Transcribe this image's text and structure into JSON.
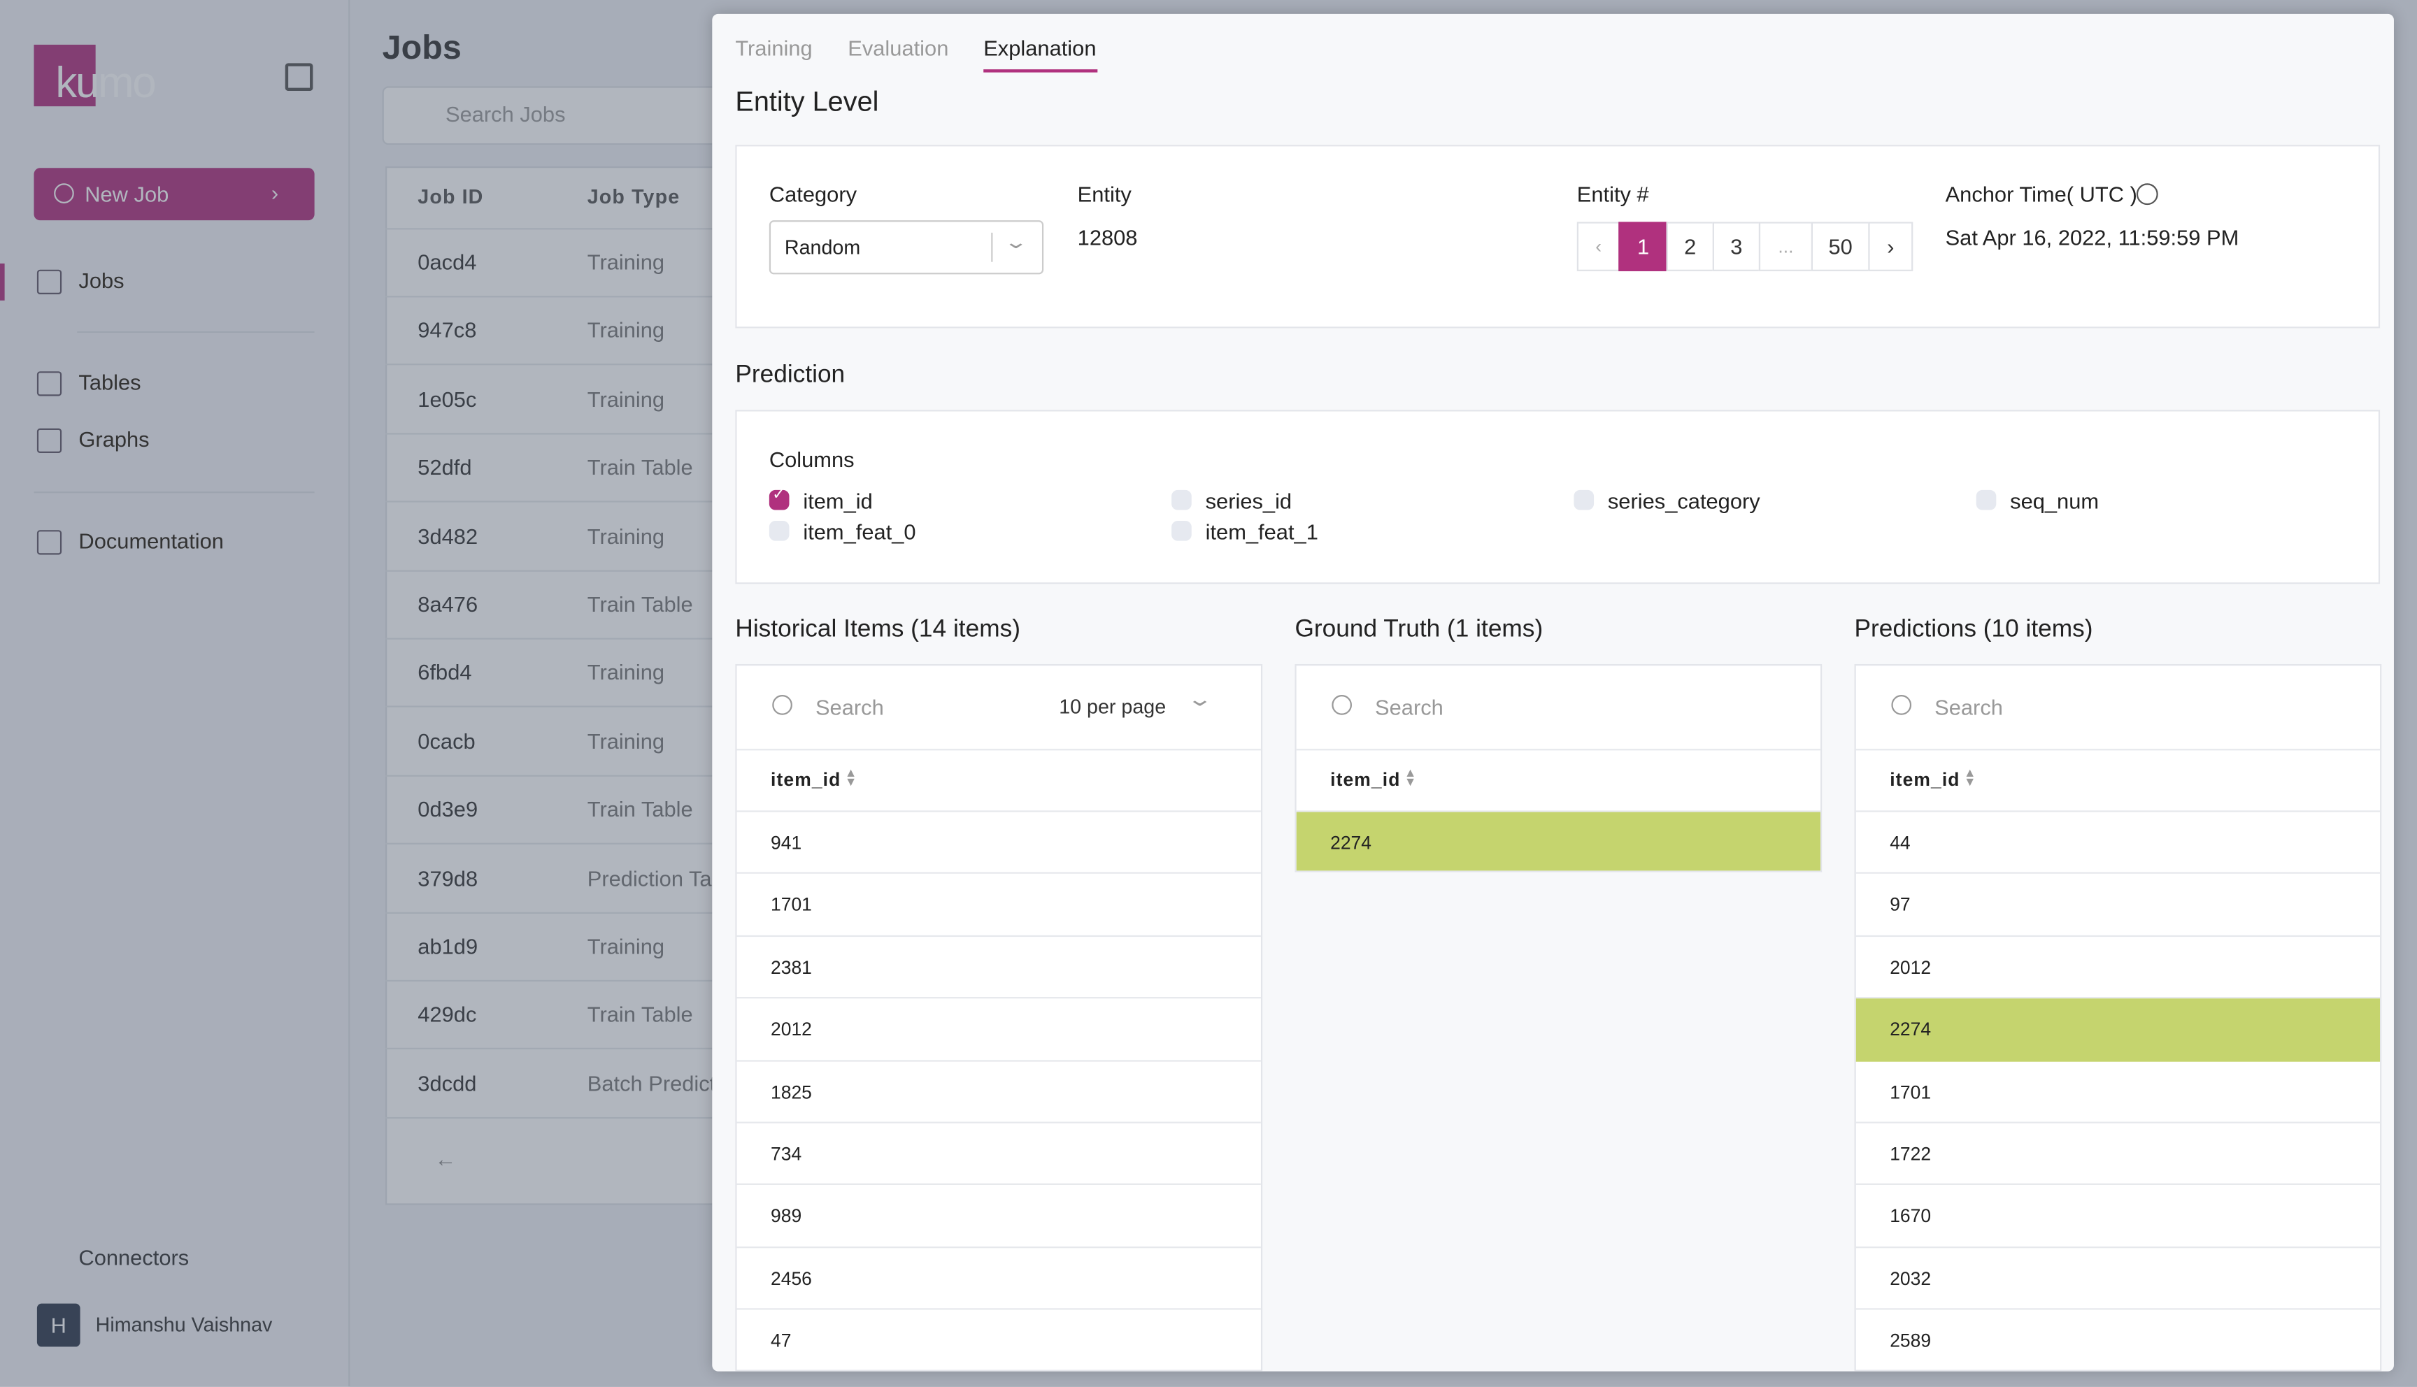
{
  "sidebar": {
    "logo": "kumo",
    "new_job": "New Job",
    "nav": [
      "Jobs",
      "Tables",
      "Graphs",
      "Documentation"
    ],
    "connectors": "Connectors",
    "user": "Himanshu Vaishnav",
    "avatar": "H"
  },
  "jobs": {
    "title": "Jobs",
    "search": "Search Jobs",
    "columns": [
      "Job ID",
      "Job Type"
    ],
    "rows": [
      [
        "0acd4",
        "Training"
      ],
      [
        "947c8",
        "Training"
      ],
      [
        "1e05c",
        "Training"
      ],
      [
        "52dfd",
        "Train Table"
      ],
      [
        "3d482",
        "Training"
      ],
      [
        "8a476",
        "Train Table"
      ],
      [
        "6fbd4",
        "Training"
      ],
      [
        "0cacb",
        "Training"
      ],
      [
        "0d3e9",
        "Train Table"
      ],
      [
        "379d8",
        "Prediction Table"
      ],
      [
        "ab1d9",
        "Training"
      ],
      [
        "429dc",
        "Train Table"
      ],
      [
        "3dcdd",
        "Batch Prediction"
      ]
    ],
    "prev": "←"
  },
  "panel": {
    "tabs": [
      "Training",
      "Evaluation",
      "Explanation"
    ],
    "active_tab": 2,
    "section": "Entity Level",
    "category_label": "Category",
    "category_value": "Random",
    "entity_label": "Entity",
    "entity_value": "12808",
    "entity_num_label": "Entity #",
    "pages": [
      "‹",
      "1",
      "2",
      "3",
      "...",
      "50",
      "›"
    ],
    "active_page": 1,
    "anchor_label": "Anchor Time( UTC )",
    "anchor_value": "Sat Apr 16, 2022, 11:59:59 PM",
    "prediction": "Prediction",
    "columns_label": "Columns",
    "columns": [
      {
        "name": "item_id",
        "checked": true
      },
      {
        "name": "series_id",
        "checked": false
      },
      {
        "name": "series_category",
        "checked": false
      },
      {
        "name": "seq_num",
        "checked": false
      },
      {
        "name": "item_feat_0",
        "checked": false
      },
      {
        "name": "item_feat_1",
        "checked": false
      }
    ],
    "tables": [
      {
        "title": "Historical Items (14 items)",
        "search": "Search",
        "per_page": "10 per page",
        "column": "item_id",
        "rows": [
          "941",
          "1701",
          "2381",
          "2012",
          "1825",
          "734",
          "989",
          "2456",
          "47"
        ],
        "highlight": []
      },
      {
        "title": "Ground Truth (1 items)",
        "search": "Search",
        "column": "item_id",
        "rows": [
          "2274"
        ],
        "highlight": [
          0
        ]
      },
      {
        "title": "Predictions (10 items)",
        "search": "Search",
        "column": "item_id",
        "rows": [
          "44",
          "97",
          "2012",
          "2274",
          "1701",
          "1722",
          "1670",
          "2032",
          "2589"
        ],
        "highlight": [
          3
        ]
      }
    ]
  }
}
